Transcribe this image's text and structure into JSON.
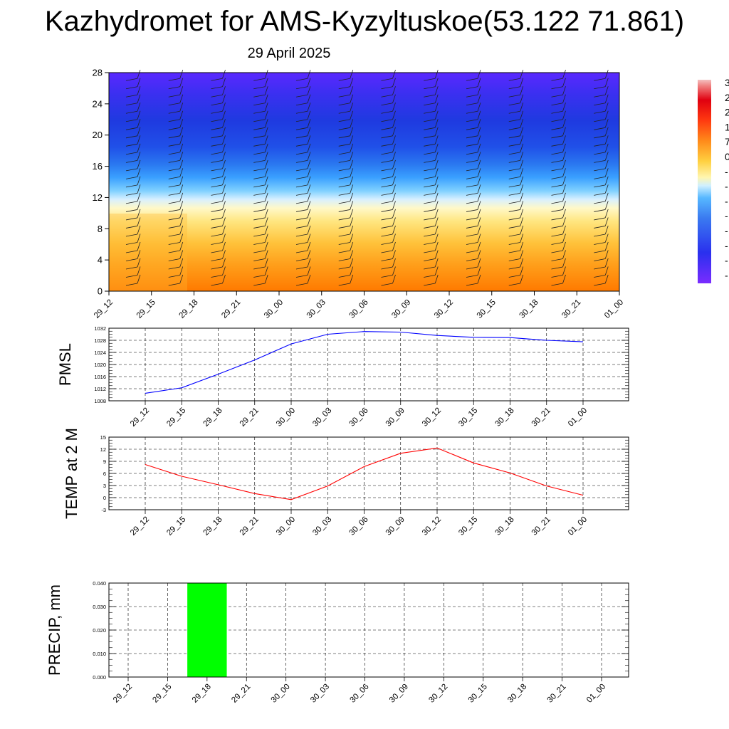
{
  "header": {
    "title": "Kazhydromet for AMS-Kyzyltuskoe(53.122 71.861)",
    "date": "29 April 2025"
  },
  "colors": {
    "pmsl_line": "#0000ff",
    "temp_line": "#ff0000",
    "precip_bar": "#00ff00",
    "grid": "#000000"
  },
  "chart_data": [
    {
      "id": "cross_section",
      "type": "heatmap",
      "title": "",
      "xlabel": "",
      "ylabel": "",
      "categories": [
        "29_12",
        "29_15",
        "29_18",
        "29_21",
        "30_00",
        "30_03",
        "30_06",
        "30_09",
        "30_12",
        "30_15",
        "30_18",
        "30_21",
        "01_00"
      ],
      "ylim": [
        0,
        28
      ],
      "yticks": [
        "0",
        "4",
        "8",
        "12",
        "16",
        "20",
        "24",
        "28"
      ],
      "colorbar_labels": [
        "3",
        "2",
        "2",
        "1",
        "7",
        "0",
        "-",
        "-",
        "-",
        "-",
        "-",
        "-",
        "-",
        "-"
      ],
      "overlay": "wind barbs",
      "grid": false
    },
    {
      "id": "pmsl",
      "type": "line",
      "ylabel": "PMSL",
      "categories": [
        "29_12",
        "29_15",
        "29_18",
        "29_21",
        "30_00",
        "30_03",
        "30_06",
        "30_09",
        "30_12",
        "30_15",
        "30_18",
        "30_21",
        "01_00"
      ],
      "yticks": [
        "1008",
        "1012",
        "1016",
        "1020",
        "1024",
        "1028",
        "1032"
      ],
      "ylim": [
        1008,
        1032
      ],
      "series": [
        {
          "values": [
            1010.5,
            1012.3,
            1016.8,
            1021.5,
            1026.8,
            1030.0,
            1030.9,
            1030.7,
            1029.6,
            1029.0,
            1028.9,
            1028.0,
            1027.5
          ]
        }
      ],
      "grid": true
    },
    {
      "id": "temp",
      "type": "line",
      "ylabel": "TEMP at 2 M",
      "categories": [
        "29_12",
        "29_15",
        "29_18",
        "29_21",
        "30_00",
        "30_03",
        "30_06",
        "30_09",
        "30_12",
        "30_15",
        "30_18",
        "30_21",
        "01_00"
      ],
      "yticks": [
        "-3",
        "0",
        "3",
        "6",
        "9",
        "12",
        "15"
      ],
      "ylim": [
        -3,
        15
      ],
      "series": [
        {
          "values": [
            8.2,
            5.3,
            3.2,
            1.0,
            -0.5,
            2.9,
            7.7,
            11.0,
            12.3,
            8.6,
            6.1,
            2.9,
            0.6
          ]
        }
      ],
      "grid": true
    },
    {
      "id": "precip",
      "type": "bar",
      "ylabel": "PRECIP, mm",
      "categories": [
        "29_12",
        "29_15",
        "29_18",
        "29_21",
        "30_00",
        "30_03",
        "30_06",
        "30_09",
        "30_12",
        "30_15",
        "30_18",
        "30_21",
        "01_00"
      ],
      "yticks": [
        "0.000",
        "0.010",
        "0.020",
        "0.030",
        "0.040"
      ],
      "ylim": [
        0,
        0.04
      ],
      "values": [
        0,
        0,
        0.04,
        0,
        0,
        0,
        0,
        0,
        0,
        0,
        0,
        0,
        0
      ],
      "grid": true
    }
  ]
}
